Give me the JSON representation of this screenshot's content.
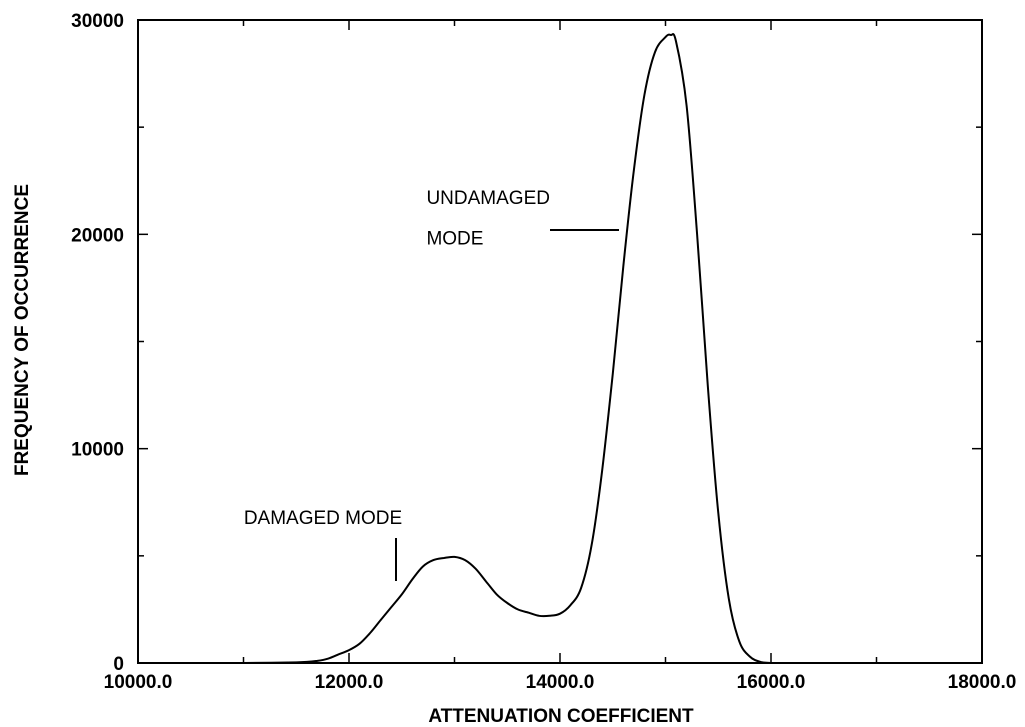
{
  "chart_data": {
    "type": "line",
    "title": "",
    "xlabel": "ATTENUATION COEFFICIENT",
    "ylabel": "FREQUENCY OF OCCURRENCE",
    "xlim": [
      10000,
      18000
    ],
    "ylim": [
      0,
      30000
    ],
    "grid": false,
    "x_ticks": [
      10000,
      12000,
      14000,
      16000,
      18000
    ],
    "x_tick_labels": [
      "10000.0",
      "12000.0",
      "14000.0",
      "16000.0",
      "18000.0"
    ],
    "y_ticks": [
      0,
      10000,
      20000,
      30000
    ],
    "y_tick_labels": [
      "0",
      "10000",
      "20000",
      "30000"
    ],
    "series": [
      {
        "x": [
          11000,
          11500,
          11700,
          11800,
          11900,
          12000,
          12100,
          12200,
          12300,
          12400,
          12500,
          12600,
          12700,
          12800,
          12900,
          13000,
          13100,
          13200,
          13300,
          13400,
          13500,
          13600,
          13700,
          13800,
          13900,
          14000,
          14100,
          14200,
          14300,
          14400,
          14500,
          14600,
          14700,
          14800,
          14900,
          15000,
          15050,
          15100,
          15200,
          15300,
          15400,
          15500,
          15600,
          15700,
          15800,
          15900,
          16000
        ],
        "y": [
          0,
          30,
          100,
          200,
          400,
          600,
          900,
          1400,
          2000,
          2600,
          3200,
          3900,
          4500,
          4800,
          4900,
          4950,
          4800,
          4400,
          3800,
          3200,
          2800,
          2500,
          2350,
          2200,
          2200,
          2300,
          2700,
          3500,
          5500,
          9000,
          13500,
          18500,
          23000,
          26500,
          28500,
          29200,
          29300,
          29000,
          26000,
          20000,
          13000,
          7000,
          3000,
          1000,
          300,
          50,
          0
        ]
      }
    ],
    "annotations": [
      {
        "text": "UNDAMAGED",
        "x": 14630,
        "y": 21500
      },
      {
        "text": "MODE",
        "x": 14630,
        "y": 20000
      },
      {
        "text": "DAMAGED MODE",
        "x": 12400,
        "y": 6600
      }
    ]
  }
}
